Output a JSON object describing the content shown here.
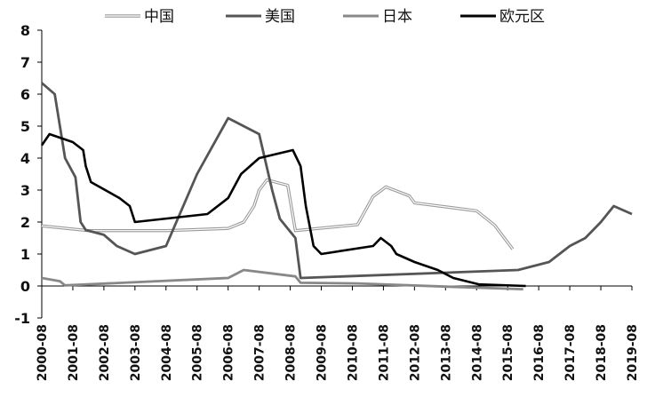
{
  "chart_data": {
    "type": "line",
    "title": "",
    "xlabel": "",
    "ylabel": "",
    "ylim": [
      -1,
      8
    ],
    "yticks": [
      -1,
      0,
      1,
      2,
      3,
      4,
      5,
      6,
      7,
      8
    ],
    "xlim": [
      "2000-08",
      "2019-08"
    ],
    "xticks": [
      "2000-08",
      "2001-08",
      "2002-08",
      "2003-08",
      "2004-08",
      "2005-08",
      "2006-08",
      "2007-08",
      "2008-08",
      "2009-08",
      "2010-08",
      "2011-08",
      "2012-08",
      "2013-08",
      "2014-08",
      "2015-08",
      "2016-08",
      "2017-08",
      "2018-08",
      "2019-08"
    ],
    "grid": false,
    "legend": "top",
    "series": [
      {
        "name": "中国",
        "color": "#c8c8c8",
        "style": "double",
        "points": [
          [
            "2000-08",
            1.88
          ],
          [
            "2002-02",
            1.73
          ],
          [
            "2004-08",
            1.73
          ],
          [
            "2006-08",
            1.8
          ],
          [
            "2007-02",
            2.0
          ],
          [
            "2007-06",
            2.5
          ],
          [
            "2007-08",
            3.0
          ],
          [
            "2007-11",
            3.32
          ],
          [
            "2008-07",
            3.15
          ],
          [
            "2008-10",
            1.73
          ],
          [
            "2010-10",
            1.92
          ],
          [
            "2011-04",
            2.8
          ],
          [
            "2011-09",
            3.1
          ],
          [
            "2012-06",
            2.82
          ],
          [
            "2012-08",
            2.6
          ],
          [
            "2014-08",
            2.35
          ],
          [
            "2015-03",
            1.9
          ],
          [
            "2015-10",
            1.15
          ]
        ]
      },
      {
        "name": "美国",
        "color": "#555555",
        "style": "solid",
        "points": [
          [
            "2000-08",
            6.35
          ],
          [
            "2001-01",
            6.0
          ],
          [
            "2001-03",
            5.0
          ],
          [
            "2001-05",
            4.0
          ],
          [
            "2001-09",
            3.4
          ],
          [
            "2001-11",
            2.0
          ],
          [
            "2002-01",
            1.75
          ],
          [
            "2002-08",
            1.6
          ],
          [
            "2003-01",
            1.25
          ],
          [
            "2003-08",
            1.0
          ],
          [
            "2004-08",
            1.25
          ],
          [
            "2005-08",
            3.5
          ],
          [
            "2006-08",
            5.25
          ],
          [
            "2007-08",
            4.75
          ],
          [
            "2008-01",
            3.0
          ],
          [
            "2008-04",
            2.1
          ],
          [
            "2008-10",
            1.5
          ],
          [
            "2008-12",
            0.25
          ],
          [
            "2015-12",
            0.5
          ],
          [
            "2016-12",
            0.75
          ],
          [
            "2017-08",
            1.25
          ],
          [
            "2018-02",
            1.5
          ],
          [
            "2018-08",
            2.0
          ],
          [
            "2019-01",
            2.5
          ],
          [
            "2019-08",
            2.25
          ]
        ]
      },
      {
        "name": "日本",
        "color": "#888888",
        "style": "solid",
        "points": [
          [
            "2000-08",
            0.25
          ],
          [
            "2001-03",
            0.15
          ],
          [
            "2001-05",
            0.02
          ],
          [
            "2006-08",
            0.25
          ],
          [
            "2007-02",
            0.5
          ],
          [
            "2008-10",
            0.3
          ],
          [
            "2008-12",
            0.1
          ],
          [
            "2010-10",
            0.08
          ],
          [
            "2013-08",
            -0.02
          ],
          [
            "2016-02",
            -0.1
          ]
        ]
      },
      {
        "name": "欧元区",
        "color": "#000000",
        "style": "solid",
        "points": [
          [
            "2000-08",
            4.4
          ],
          [
            "2000-11",
            4.75
          ],
          [
            "2001-08",
            4.5
          ],
          [
            "2001-12",
            4.25
          ],
          [
            "2002-01",
            3.75
          ],
          [
            "2002-03",
            3.25
          ],
          [
            "2003-02",
            2.75
          ],
          [
            "2003-06",
            2.5
          ],
          [
            "2003-08",
            2.0
          ],
          [
            "2005-12",
            2.25
          ],
          [
            "2006-08",
            2.75
          ],
          [
            "2007-01",
            3.5
          ],
          [
            "2007-08",
            4.0
          ],
          [
            "2008-09",
            4.25
          ],
          [
            "2008-12",
            3.75
          ],
          [
            "2009-02",
            2.5
          ],
          [
            "2009-05",
            1.25
          ],
          [
            "2009-08",
            1.0
          ],
          [
            "2011-04",
            1.25
          ],
          [
            "2011-07",
            1.5
          ],
          [
            "2011-11",
            1.25
          ],
          [
            "2012-01",
            1.0
          ],
          [
            "2012-08",
            0.75
          ],
          [
            "2013-05",
            0.5
          ],
          [
            "2013-11",
            0.25
          ],
          [
            "2014-09",
            0.05
          ],
          [
            "2016-03",
            0.0
          ]
        ]
      }
    ]
  }
}
